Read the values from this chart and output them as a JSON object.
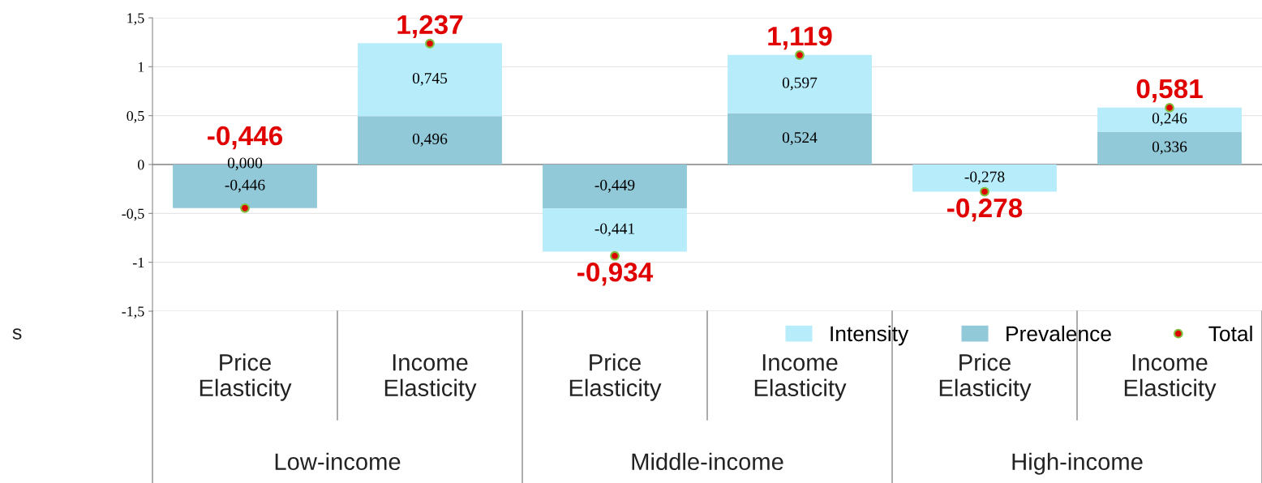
{
  "chart_data": {
    "type": "bar",
    "stacked": true,
    "ylabel": "s",
    "categories": [
      "Price\nElasticity",
      "Income\nElasticity",
      "Price\nElasticity",
      "Income\nElasticity",
      "Price\nElasticity",
      "Income\nElasticity"
    ],
    "annotations": [
      "Low-income",
      "Middle-income",
      "High-income"
    ],
    "series": [
      {
        "name": "Prevalence",
        "color": "#92c9d9",
        "values": [
          -0.446,
          0.496,
          -0.449,
          0.524,
          null,
          0.336
        ],
        "value_labels": [
          "-0,446",
          "0,496",
          "-0,449",
          "0,524",
          null,
          "0,336"
        ]
      },
      {
        "name": "Intensity",
        "color": "#b7ecfb",
        "values": [
          0.0,
          0.745,
          -0.441,
          0.597,
          -0.278,
          0.246
        ],
        "value_labels": [
          "0,000",
          "0,745",
          "-0,441",
          "0,597",
          "-0,278",
          "0,246"
        ]
      },
      {
        "name": "Total",
        "type": "scatter",
        "color": "#e00000",
        "values": [
          -0.446,
          1.237,
          -0.934,
          1.119,
          -0.278,
          0.581
        ],
        "value_labels": [
          "-0,446",
          "1,237",
          "-0,934",
          "1,119",
          "-0,278",
          "0,581"
        ]
      }
    ],
    "ylim": [
      -1.5,
      1.5
    ],
    "yticks": [
      {
        "value": -1.5,
        "label": "-1,5"
      },
      -1,
      {
        "value": -0.5,
        "label": "-0,5"
      },
      0,
      {
        "value": 0.5,
        "label": "0,5"
      },
      1,
      {
        "value": 1.5,
        "label": "1,5"
      }
    ],
    "grid": "y",
    "legend": "bottom right",
    "marker": "circle"
  }
}
